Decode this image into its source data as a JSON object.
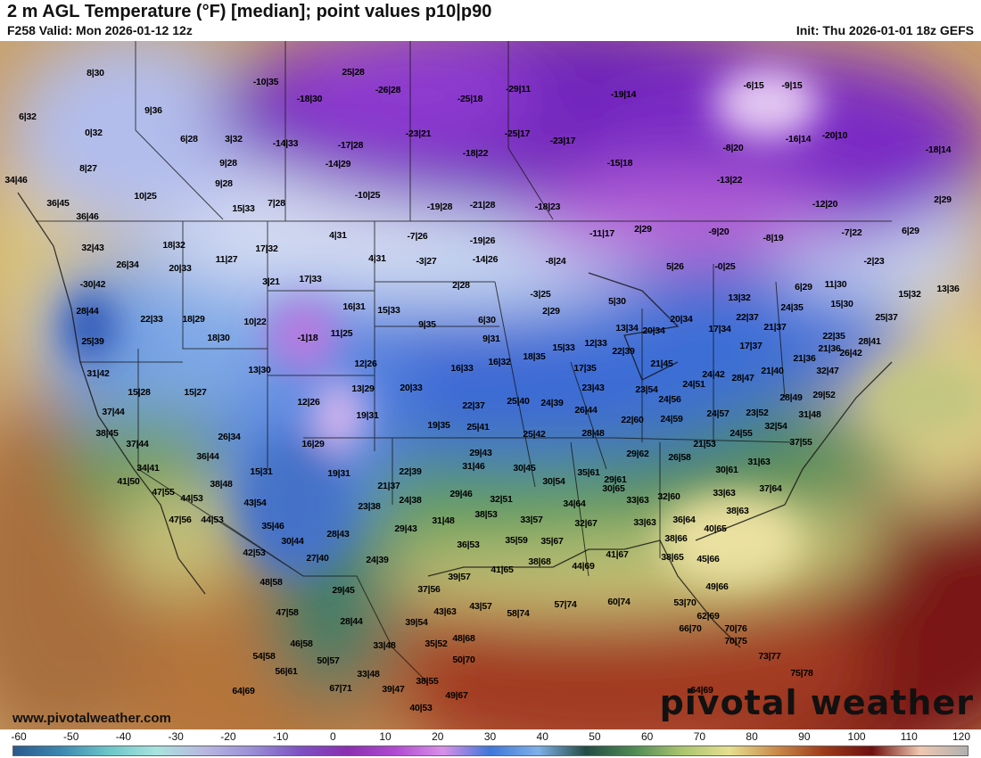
{
  "header": {
    "title": "2 m AGL Temperature (°F) [median]; point values p10|p90",
    "valid": "F258 Valid: Mon 2026-01-12 12z",
    "init": "Init: Thu 2026-01-01 18z GEFS"
  },
  "footer": {
    "credit": "www.pivotalweather.com",
    "brand": "pivotal weather"
  },
  "colorbar": {
    "ticks": [
      "-60",
      "-50",
      "-40",
      "-30",
      "-20",
      "-10",
      "0",
      "10",
      "20",
      "30",
      "40",
      "50",
      "60",
      "70",
      "80",
      "90",
      "100",
      "110",
      "120"
    ],
    "colors": [
      "#2a5a8c",
      "#3d88b0",
      "#6cc6c8",
      "#a9e3df",
      "#b8b8e0",
      "#9a8fd6",
      "#7d52c2",
      "#8a2fb0",
      "#b04ad0",
      "#d890e8",
      "#3f77d8",
      "#7fb0e8",
      "#244c44",
      "#4f8a55",
      "#a9c46e",
      "#e6df90",
      "#c98a4a",
      "#9c3a1a",
      "#6e1010",
      "#f0c8b0",
      "#b0b0b0"
    ]
  },
  "points": [
    "8|30",
    "-10|35",
    "25|28",
    "-26|28",
    "-29|11",
    "-19|14",
    "-6|15",
    "-9|15",
    "6|32",
    "9|36",
    "-18|30",
    "-25|18",
    "-16|14",
    "-20|10",
    "-18|14",
    "0|32",
    "6|28",
    "3|32",
    "-14|33",
    "-17|28",
    "-23|21",
    "-25|17",
    "-23|17",
    "-8|20",
    "8|27",
    "9|28",
    "-14|29",
    "-18|22",
    "-15|18",
    "34|46",
    "9|28",
    "-10|25",
    "-13|22",
    "10|25",
    "15|33",
    "7|28",
    "-19|28",
    "-21|28",
    "-18|23",
    "-12|20",
    "2|29",
    "36|45",
    "36|46",
    "-7|26",
    "-11|17",
    "2|29",
    "-9|20",
    "-8|19",
    "-7|22",
    "6|29",
    "18|32",
    "4|31",
    "-19|26",
    "32|43",
    "26|34",
    "11|27",
    "17|32",
    "4|31",
    "-3|27",
    "-14|26",
    "-8|24",
    "-0|25",
    "5|26",
    "-2|23",
    "20|33",
    "3|21",
    "17|33",
    "2|28",
    "6|29",
    "11|30",
    "15|32",
    "13|36",
    "-30|42",
    "-3|25",
    "13|32",
    "28|44",
    "22|33",
    "16|31",
    "15|33",
    "2|29",
    "5|30",
    "15|30",
    "22|37",
    "24|35",
    "25|37",
    "18|29",
    "10|22",
    "6|30",
    "20|34",
    "21|37",
    "22|35",
    "25|39",
    "18|30",
    "-1|18",
    "11|25",
    "9|35",
    "9|31",
    "13|34",
    "20|34",
    "17|34",
    "28|41",
    "15|33",
    "12|33",
    "21|36",
    "17|37",
    "26|42",
    "13|30",
    "18|35",
    "22|39",
    "31|42",
    "12|26",
    "16|33",
    "16|32",
    "17|35",
    "21|45",
    "24|42",
    "21|40",
    "21|36",
    "32|47",
    "15|28",
    "15|27",
    "13|29",
    "20|33",
    "23|43",
    "23|54",
    "24|51",
    "28|47",
    "28|49",
    "29|52",
    "12|26",
    "22|37",
    "25|40",
    "24|39",
    "24|56",
    "37|44",
    "19|31",
    "26|44",
    "24|59",
    "24|57",
    "23|52",
    "31|48",
    "19|35",
    "25|41",
    "22|60",
    "32|54",
    "38|45",
    "26|34",
    "25|42",
    "28|48",
    "24|55",
    "37|44",
    "16|29",
    "29|43",
    "29|62",
    "21|53",
    "37|55",
    "36|44",
    "15|31",
    "19|31",
    "22|39",
    "31|46",
    "30|45",
    "35|61",
    "26|58",
    "31|63",
    "34|41",
    "38|48",
    "30|54",
    "29|61",
    "30|61",
    "41|50",
    "47|55",
    "44|53",
    "21|37",
    "29|46",
    "30|65",
    "32|60",
    "37|64",
    "33|63",
    "43|54",
    "23|38",
    "24|38",
    "32|51",
    "34|64",
    "33|63",
    "38|63",
    "47|56",
    "44|53",
    "38|53",
    "36|64",
    "35|46",
    "28|43",
    "29|43",
    "31|48",
    "33|57",
    "32|67",
    "33|63",
    "40|65",
    "30|44",
    "36|53",
    "35|59",
    "35|67",
    "38|66",
    "42|53",
    "27|40",
    "24|39",
    "38|68",
    "41|65",
    "44|69",
    "41|67",
    "38|65",
    "45|66",
    "39|57",
    "48|58",
    "37|56",
    "49|66",
    "29|45",
    "60|74",
    "57|74",
    "53|70",
    "47|58",
    "39|54",
    "43|63",
    "43|57",
    "58|74",
    "62|69",
    "28|44",
    "66|70",
    "70|76",
    "46|58",
    "35|52",
    "48|68",
    "70|75",
    "54|58",
    "33|48",
    "50|57",
    "50|70",
    "73|77",
    "56|61",
    "33|48",
    "75|78",
    "38|55",
    "39|47",
    "67|71",
    "49|67",
    "64|69",
    "64|69",
    "40|53"
  ]
}
